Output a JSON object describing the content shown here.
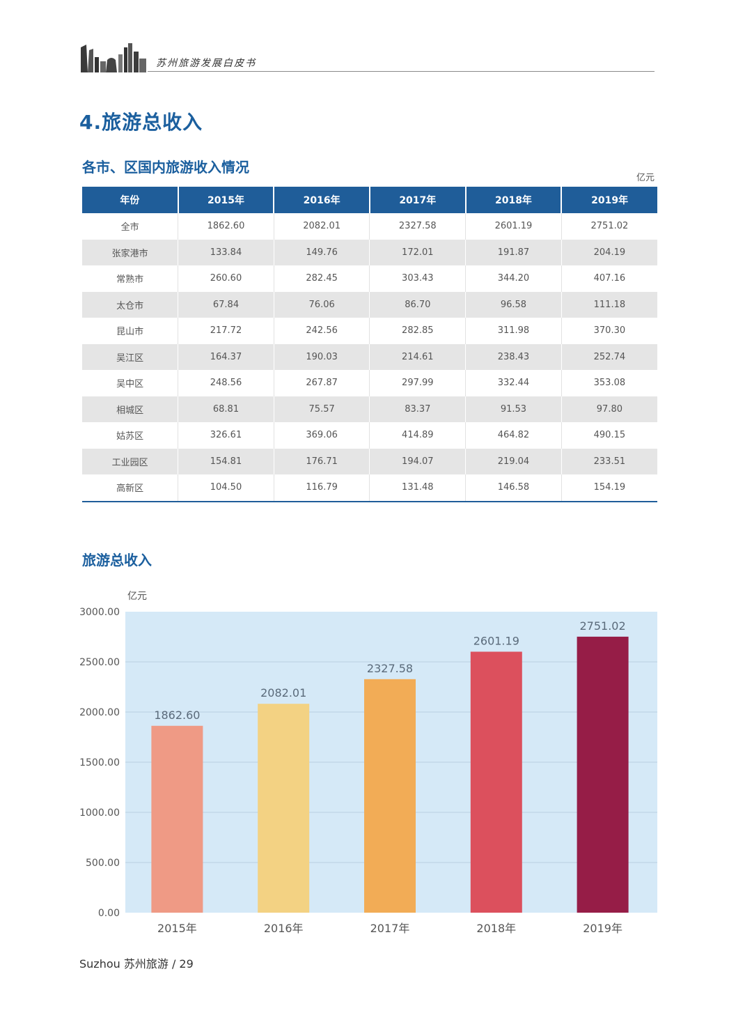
{
  "header": {
    "title": "苏州旅游发展白皮书"
  },
  "section_title": "4.旅游总收入",
  "table": {
    "title": "各市、区国内旅游收入情况",
    "unit": "亿元",
    "columns": [
      "年份",
      "2015年",
      "2016年",
      "2017年",
      "2018年",
      "2019年"
    ],
    "rows": [
      [
        "全市",
        "1862.60",
        "2082.01",
        "2327.58",
        "2601.19",
        "2751.02"
      ],
      [
        "张家港市",
        "133.84",
        "149.76",
        "172.01",
        "191.87",
        "204.19"
      ],
      [
        "常熟市",
        "260.60",
        "282.45",
        "303.43",
        "344.20",
        "407.16"
      ],
      [
        "太仓市",
        "67.84",
        "76.06",
        "86.70",
        "96.58",
        "111.18"
      ],
      [
        "昆山市",
        "217.72",
        "242.56",
        "282.85",
        "311.98",
        "370.30"
      ],
      [
        "吴江区",
        "164.37",
        "190.03",
        "214.61",
        "238.43",
        "252.74"
      ],
      [
        "吴中区",
        "248.56",
        "267.87",
        "297.99",
        "332.44",
        "353.08"
      ],
      [
        "相城区",
        "68.81",
        "75.57",
        "83.37",
        "91.53",
        "97.80"
      ],
      [
        "姑苏区",
        "326.61",
        "369.06",
        "414.89",
        "464.82",
        "490.15"
      ],
      [
        "工业园区",
        "154.81",
        "176.71",
        "194.07",
        "219.04",
        "233.51"
      ],
      [
        "高新区",
        "104.50",
        "116.79",
        "131.48",
        "146.58",
        "154.19"
      ]
    ]
  },
  "chart_data": {
    "type": "bar",
    "title": "旅游总收入",
    "ylabel": "亿元",
    "xlabel": "",
    "categories": [
      "2015年",
      "2016年",
      "2017年",
      "2018年",
      "2019年"
    ],
    "values": [
      1862.6,
      2082.01,
      2327.58,
      2601.19,
      2751.02
    ],
    "value_labels": [
      "1862.60",
      "2082.01",
      "2327.58",
      "2601.19",
      "2751.02"
    ],
    "colors": [
      "#ef9a85",
      "#f3d283",
      "#f2ac56",
      "#dc505d",
      "#961d47"
    ],
    "ylim": [
      0,
      3000
    ],
    "yticks": [
      0,
      500,
      1000,
      1500,
      2000,
      2500,
      3000
    ],
    "ytick_labels": [
      "0.00",
      "500.00",
      "1000.00",
      "1500.00",
      "2000.00",
      "2500.00",
      "3000.00"
    ],
    "grid": true,
    "background": "#d5e9f7"
  },
  "footer": {
    "text": "Suzhou 苏州旅游 / 29"
  },
  "colors": {
    "accent": "#1b5f9e",
    "table_header": "#1f5d99",
    "stripe": "#e5e5e5"
  }
}
